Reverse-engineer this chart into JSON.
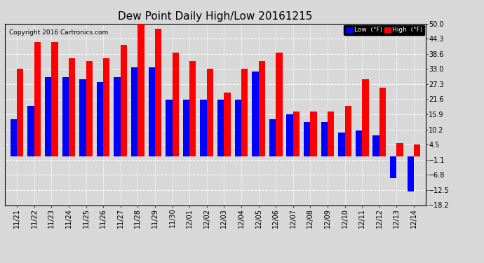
{
  "title": "Dew Point Daily High/Low 20161215",
  "copyright": "Copyright 2016 Cartronics.com",
  "dates": [
    "11/21",
    "11/22",
    "11/23",
    "11/24",
    "11/25",
    "11/26",
    "11/27",
    "11/28",
    "11/29",
    "11/30",
    "12/01",
    "12/02",
    "12/03",
    "12/04",
    "12/05",
    "12/06",
    "12/07",
    "12/08",
    "12/09",
    "12/10",
    "12/11",
    "12/12",
    "12/13",
    "12/14"
  ],
  "low_values": [
    14.0,
    19.0,
    30.0,
    30.0,
    29.0,
    28.0,
    30.0,
    33.5,
    33.5,
    21.5,
    21.5,
    21.5,
    21.5,
    21.5,
    32.0,
    14.0,
    16.0,
    13.0,
    13.0,
    9.0,
    10.0,
    8.0,
    -8.0,
    -13.0
  ],
  "high_values": [
    33.0,
    43.0,
    43.0,
    37.0,
    36.0,
    37.0,
    42.0,
    50.0,
    48.0,
    39.0,
    36.0,
    33.0,
    24.0,
    33.0,
    36.0,
    39.0,
    17.0,
    17.0,
    17.0,
    19.0,
    29.0,
    26.0,
    5.0,
    4.5
  ],
  "ylim": [
    -18.2,
    50.0
  ],
  "yticks": [
    50.0,
    44.3,
    38.6,
    33.0,
    27.3,
    21.6,
    15.9,
    10.2,
    4.5,
    -1.1,
    -6.8,
    -12.5,
    -18.2
  ],
  "low_color": "#0000ff",
  "high_color": "#ff0000",
  "bg_color": "#d8d8d8",
  "plot_bg_color": "#d8d8d8",
  "grid_color": "white",
  "bar_width": 0.38,
  "title_fontsize": 11,
  "tick_fontsize": 7,
  "legend_low_label": "Low  (°F)",
  "legend_high_label": "High  (°F)"
}
